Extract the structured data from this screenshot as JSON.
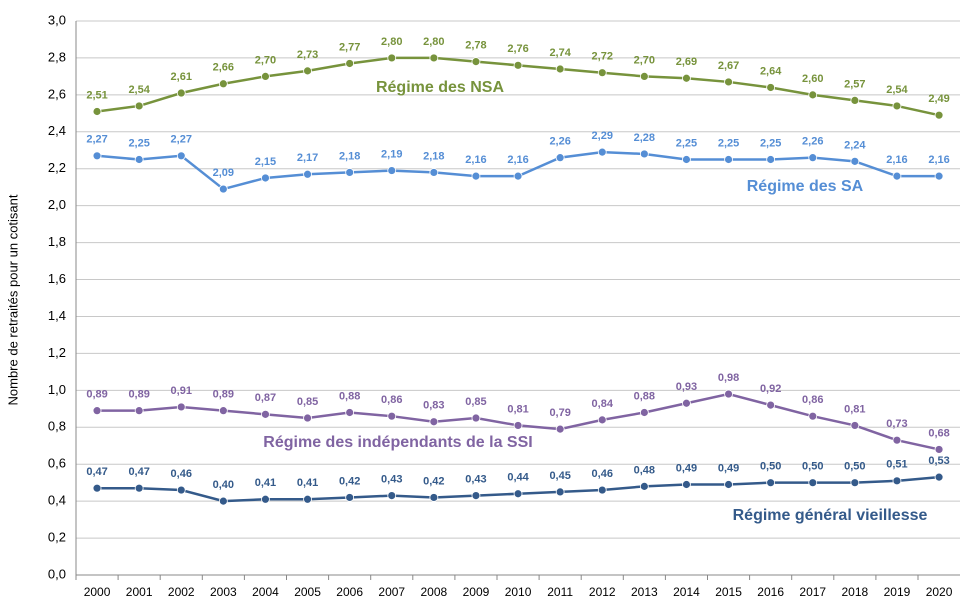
{
  "chart_data": {
    "type": "line",
    "ylabel": "Nombre de retraités pour un cotisant",
    "categories": [
      "2000",
      "2001",
      "2002",
      "2003",
      "2004",
      "2005",
      "2006",
      "2007",
      "2008",
      "2009",
      "2010",
      "2011",
      "2012",
      "2013",
      "2014",
      "2015",
      "2016",
      "2017",
      "2018",
      "2019",
      "2020"
    ],
    "ylim": [
      0,
      3
    ],
    "yticks": [
      {
        "value": 0,
        "label": "0,0"
      },
      {
        "value": 0.2,
        "label": "0,2"
      },
      {
        "value": 0.4,
        "label": "0,4"
      },
      {
        "value": 0.6,
        "label": "0,6"
      },
      {
        "value": 0.8,
        "label": "0,8"
      },
      {
        "value": 1,
        "label": "1,0"
      },
      {
        "value": 1.2,
        "label": "1,2"
      },
      {
        "value": 1.4,
        "label": "1,4"
      },
      {
        "value": 1.6,
        "label": "1,6"
      },
      {
        "value": 1.8,
        "label": "1,8"
      },
      {
        "value": 2,
        "label": "2,0"
      },
      {
        "value": 2.2,
        "label": "2,2"
      },
      {
        "value": 2.4,
        "label": "2,4"
      },
      {
        "value": 2.6,
        "label": "2,6"
      },
      {
        "value": 2.8,
        "label": "2,8"
      },
      {
        "value": 3,
        "label": "3,0"
      }
    ],
    "grid": true,
    "series": [
      {
        "name": "Régime des NSA",
        "color": "#77933c",
        "values": [
          2.51,
          2.54,
          2.61,
          2.66,
          2.7,
          2.73,
          2.77,
          2.8,
          2.8,
          2.78,
          2.76,
          2.74,
          2.72,
          2.7,
          2.69,
          2.67,
          2.64,
          2.6,
          2.57,
          2.54,
          2.49
        ],
        "value_labels": [
          "2,51",
          "2,54",
          "2,61",
          "2,66",
          "2,70",
          "2,73",
          "2,77",
          "2,80",
          "2,80",
          "2,78",
          "2,76",
          "2,74",
          "2,72",
          "2,70",
          "2,69",
          "2,67",
          "2,64",
          "2,60",
          "2,57",
          "2,54",
          "2,49"
        ]
      },
      {
        "name": "Régime des SA",
        "color": "#558ed5",
        "values": [
          2.27,
          2.25,
          2.27,
          2.09,
          2.15,
          2.17,
          2.18,
          2.19,
          2.18,
          2.16,
          2.16,
          2.26,
          2.29,
          2.28,
          2.25,
          2.25,
          2.25,
          2.26,
          2.24,
          2.16,
          2.16
        ],
        "value_labels": [
          "2,27",
          "2,25",
          "2,27",
          "2,09",
          "2,15",
          "2,17",
          "2,18",
          "2,19",
          "2,18",
          "2,16",
          "2,16",
          "2,26",
          "2,29",
          "2,28",
          "2,25",
          "2,25",
          "2,25",
          "2,26",
          "2,24",
          "2,16",
          "2,16"
        ]
      },
      {
        "name": "Régime des indépendants de la SSI",
        "color": "#8064a2",
        "values": [
          0.89,
          0.89,
          0.91,
          0.89,
          0.87,
          0.85,
          0.88,
          0.86,
          0.83,
          0.85,
          0.81,
          0.79,
          0.84,
          0.88,
          0.93,
          0.98,
          0.92,
          0.86,
          0.81,
          0.73,
          0.68
        ],
        "value_labels": [
          "0,89",
          "0,89",
          "0,91",
          "0,89",
          "0,87",
          "0,85",
          "0,88",
          "0,86",
          "0,83",
          "0,85",
          "0,81",
          "0,79",
          "0,84",
          "0,88",
          "0,93",
          "0,98",
          "0,92",
          "0,86",
          "0,81",
          "0,73",
          "0,68"
        ]
      },
      {
        "name": "Régime général vieillesse",
        "color": "#345a8a",
        "values": [
          0.47,
          0.47,
          0.46,
          0.4,
          0.41,
          0.41,
          0.42,
          0.43,
          0.42,
          0.43,
          0.44,
          0.45,
          0.46,
          0.48,
          0.49,
          0.49,
          0.5,
          0.5,
          0.5,
          0.51,
          0.53
        ],
        "value_labels": [
          "0,47",
          "0,47",
          "0,46",
          "0,40",
          "0,41",
          "0,41",
          "0,42",
          "0,43",
          "0,42",
          "0,43",
          "0,44",
          "0,45",
          "0,46",
          "0,48",
          "0,49",
          "0,49",
          "0,50",
          "0,50",
          "0,50",
          "0,51",
          "0,53"
        ]
      }
    ]
  }
}
